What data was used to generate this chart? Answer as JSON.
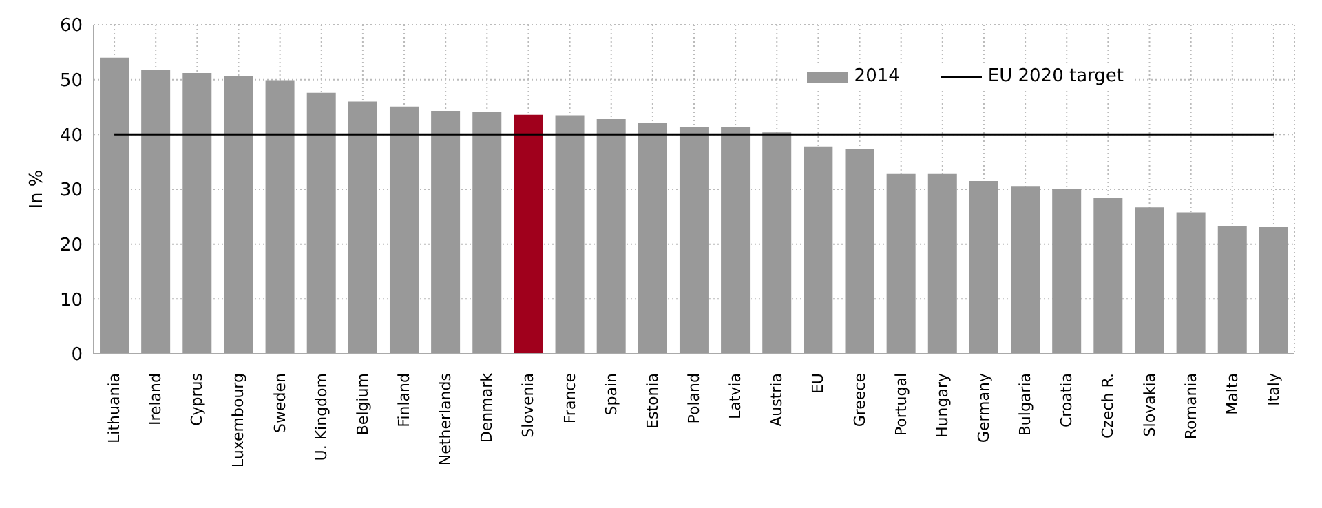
{
  "chart_data": {
    "type": "bar",
    "ylabel": "In %",
    "categories": [
      "Lithuania",
      "Ireland",
      "Cyprus",
      "Luxembourg",
      "Sweden",
      "U. Kingdom",
      "Belgium",
      "Finland",
      "Netherlands",
      "Denmark",
      "Slovenia",
      "France",
      "Spain",
      "Estonia",
      "Poland",
      "Latvia",
      "Austria",
      "EU",
      "Greece",
      "Portugal",
      "Hungary",
      "Germany",
      "Bulgaria",
      "Croatia",
      "Czech R.",
      "Slovakia",
      "Romania",
      "Malta",
      "Italy"
    ],
    "series": [
      {
        "name": "2014",
        "color": "#999999",
        "colors": [
          "#999999",
          "#999999",
          "#999999",
          "#999999",
          "#999999",
          "#999999",
          "#999999",
          "#999999",
          "#999999",
          "#999999",
          "#a0001c",
          "#999999",
          "#999999",
          "#999999",
          "#999999",
          "#999999",
          "#999999",
          "#999999",
          "#999999",
          "#999999",
          "#999999",
          "#999999",
          "#999999",
          "#999999",
          "#999999",
          "#999999",
          "#999999",
          "#999999",
          "#999999"
        ],
        "values": [
          54.0,
          51.8,
          51.2,
          50.6,
          49.9,
          47.6,
          46.0,
          45.1,
          44.3,
          44.1,
          43.6,
          43.5,
          42.8,
          42.1,
          41.4,
          41.4,
          40.4,
          37.8,
          37.3,
          32.8,
          32.8,
          31.5,
          30.6,
          30.1,
          28.5,
          26.7,
          25.8,
          23.3,
          23.1
        ]
      },
      {
        "name": "EU 2020 target",
        "type": "line",
        "color": "#000000",
        "marker": "none",
        "values": [
          40,
          40,
          40,
          40,
          40,
          40,
          40,
          40,
          40,
          40,
          40,
          40,
          40,
          40,
          40,
          40,
          40,
          40,
          40,
          40,
          40,
          40,
          40,
          40,
          40,
          40,
          40,
          40,
          40
        ]
      }
    ],
    "ylim": [
      0,
      60
    ],
    "yticks": [
      0,
      10,
      20,
      30,
      40,
      50,
      60
    ],
    "grid": true,
    "legend": "top right"
  }
}
